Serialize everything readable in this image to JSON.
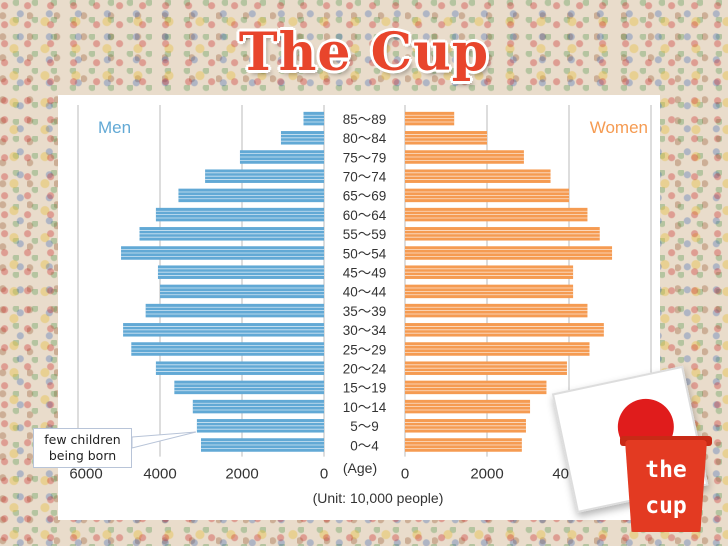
{
  "slide": {
    "title": "The Cup"
  },
  "annotation": {
    "line1": "few children",
    "line2": "being born"
  },
  "cup_label": {
    "line1": "the",
    "line2": "cup"
  },
  "colors": {
    "men": "#62a9d5",
    "women": "#f59b52",
    "title": "#e8452c",
    "badge_sun": "#e01c1c"
  },
  "chart_data": {
    "type": "bar",
    "orientation": "horizontal-population-pyramid",
    "left_label": "Men",
    "right_label": "Women",
    "age_axis_label": "(Age)",
    "unit_label": "(Unit: 10,000 people)",
    "categories": [
      "85~89",
      "80~84",
      "75~79",
      "70~74",
      "65~69",
      "60~64",
      "55~59",
      "50~54",
      "45~49",
      "40~44",
      "35~39",
      "30~34",
      "25~29",
      "20~24",
      "15~19",
      "10~14",
      "5~9",
      "0~4"
    ],
    "series": [
      {
        "name": "Men",
        "values": [
          500,
          1050,
          2050,
          2900,
          3550,
          4100,
          4500,
          4950,
          4050,
          4000,
          4350,
          4900,
          4700,
          4100,
          3650,
          3200,
          3100,
          3000
        ]
      },
      {
        "name": "Women",
        "values": [
          1200,
          2000,
          2900,
          3550,
          4000,
          4450,
          4750,
          5050,
          4100,
          4100,
          4450,
          4850,
          4500,
          3950,
          3450,
          3050,
          2950,
          2850
        ]
      }
    ],
    "x_ticks_left": [
      "6000",
      "4000",
      "2000",
      "0"
    ],
    "x_ticks_right": [
      "0",
      "2000",
      "4000"
    ],
    "xlim": [
      0,
      6000
    ],
    "grid": true
  }
}
